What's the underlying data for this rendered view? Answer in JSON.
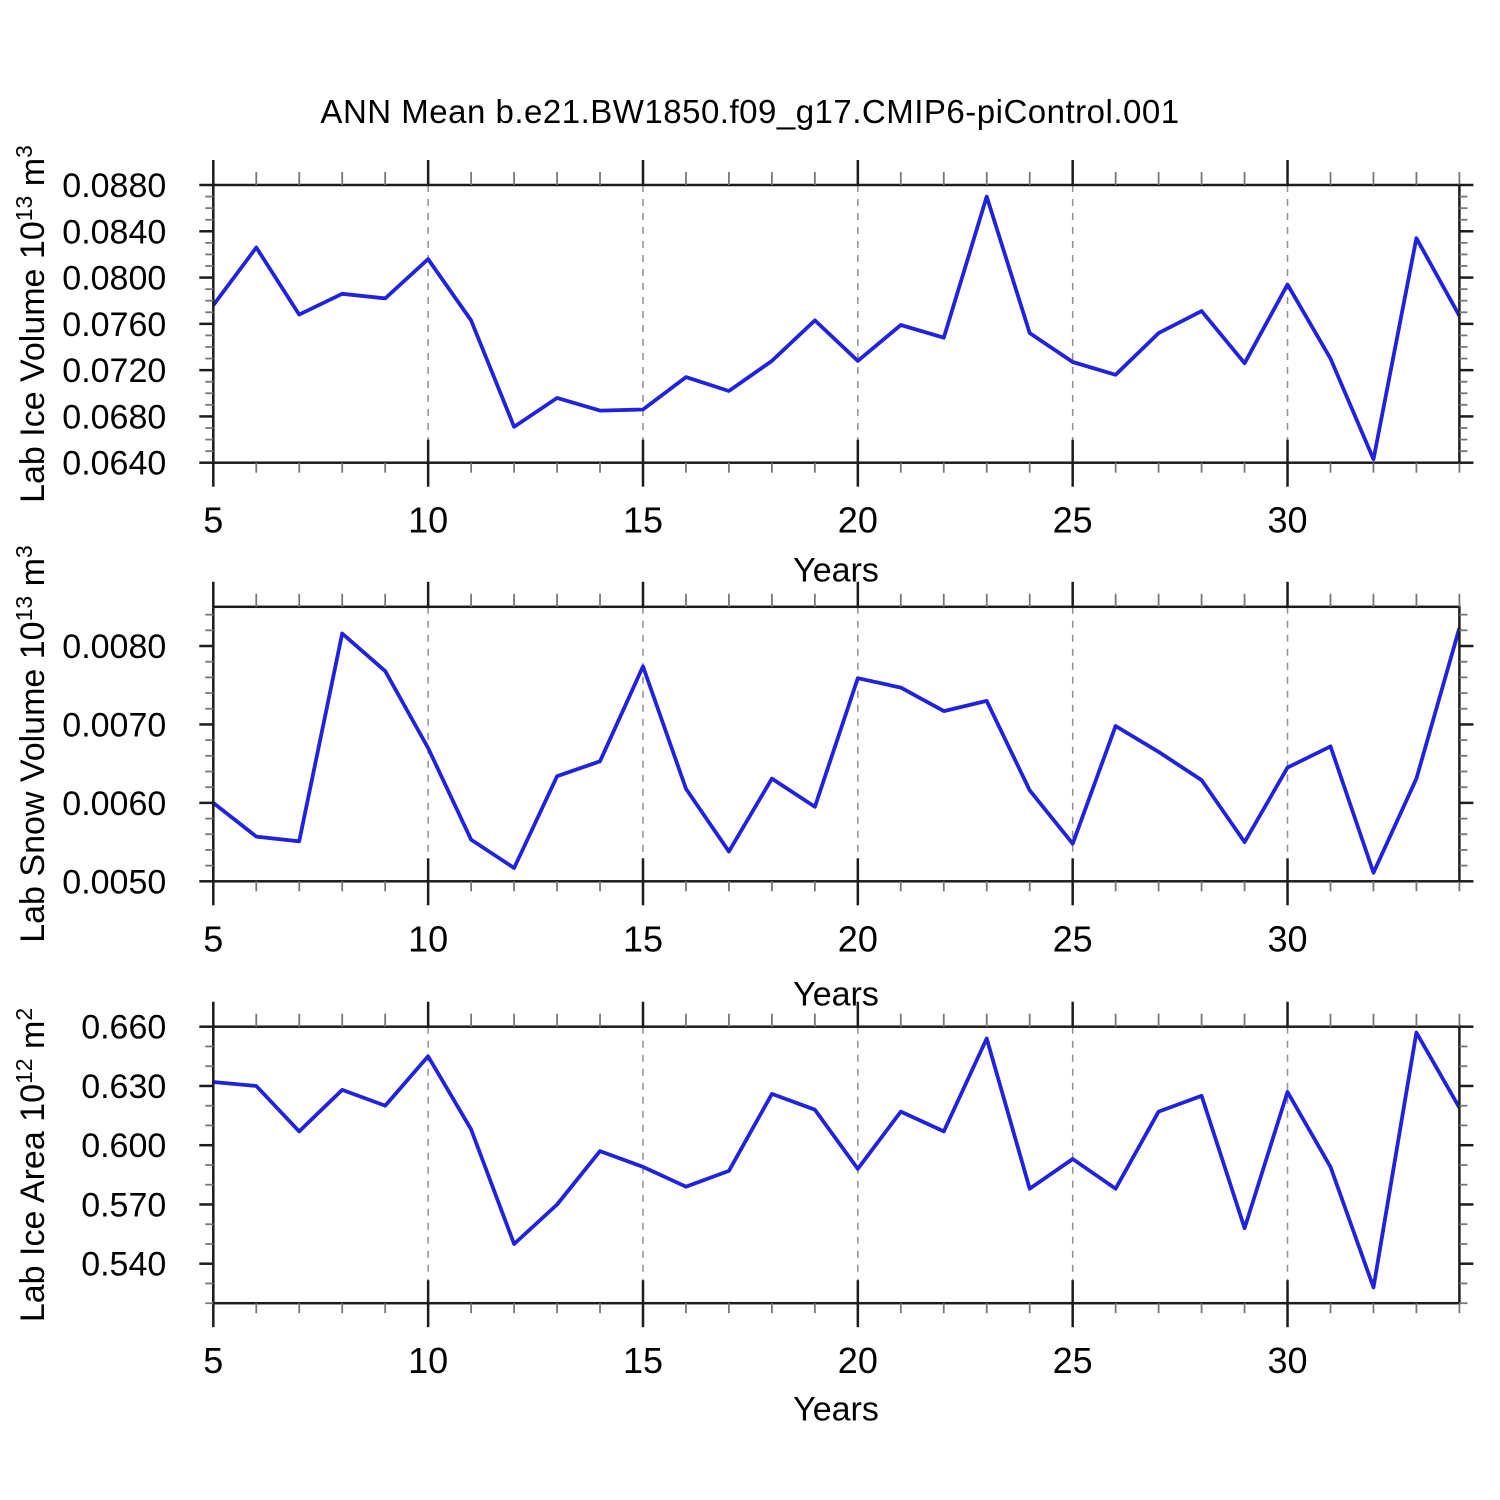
{
  "title": "ANN Mean b.e21.BW1850.f09_g17.CMIP6-piControl.001",
  "colors": {
    "line": "#2222dd",
    "gridline": "#909090",
    "axis": "#1c1c1c",
    "minor_tick": "#777777",
    "text": "#000000",
    "background": "#ffffff"
  },
  "x_axis": {
    "label": "Years",
    "xlim": [
      5,
      34
    ],
    "tick_labels": [
      "5",
      "10",
      "15",
      "20",
      "25",
      "30"
    ],
    "minor_step": 1,
    "grid_years": [
      10,
      15,
      20,
      25,
      30
    ],
    "grid_style": "dashed-vertical"
  },
  "chart_data": [
    {
      "type": "line",
      "name": "lab-ice-volume",
      "ylabel_base": "Lab Ice Volume 10",
      "ylabel_sup1": "13",
      "ylabel_unit": " m",
      "ylabel_sup2": "3",
      "xlabel": "Years",
      "x_start": 5,
      "x": [
        5,
        6,
        7,
        8,
        9,
        10,
        11,
        12,
        13,
        14,
        15,
        16,
        17,
        18,
        19,
        20,
        21,
        22,
        23,
        24,
        25,
        26,
        27,
        28,
        29,
        30,
        31,
        32,
        33,
        34
      ],
      "values": [
        0.0776,
        0.0826,
        0.0768,
        0.0786,
        0.0782,
        0.0816,
        0.0763,
        0.0671,
        0.0696,
        0.0685,
        0.0686,
        0.0714,
        0.0702,
        0.0728,
        0.0763,
        0.0728,
        0.0759,
        0.0748,
        0.087,
        0.0752,
        0.0727,
        0.0716,
        0.0752,
        0.0771,
        0.0726,
        0.0794,
        0.073,
        0.0643,
        0.0834,
        0.0767
      ],
      "ylim": [
        0.064,
        0.088
      ],
      "ytick_labels": [
        "0.0640",
        "0.0680",
        "0.0720",
        "0.0760",
        "0.0800",
        "0.0840",
        "0.0880"
      ],
      "y_minor_step": 0.001,
      "grid": "vertical-dashed-only"
    },
    {
      "type": "line",
      "name": "lab-snow-volume",
      "ylabel_base": "Lab Snow Volume 10",
      "ylabel_sup1": "13",
      "ylabel_unit": " m",
      "ylabel_sup2": "3",
      "xlabel": "Years",
      "x_start": 5,
      "x": [
        5,
        6,
        7,
        8,
        9,
        10,
        11,
        12,
        13,
        14,
        15,
        16,
        17,
        18,
        19,
        20,
        21,
        22,
        23,
        24,
        25,
        26,
        27,
        28,
        29,
        30,
        31,
        32,
        33,
        34
      ],
      "values": [
        0.006,
        0.00557,
        0.00551,
        0.00816,
        0.00768,
        0.0067,
        0.00553,
        0.00517,
        0.00634,
        0.00653,
        0.00774,
        0.00618,
        0.00538,
        0.00631,
        0.00595,
        0.00759,
        0.00747,
        0.00717,
        0.0073,
        0.00616,
        0.00548,
        0.00698,
        0.00665,
        0.00629,
        0.0055,
        0.00645,
        0.00672,
        0.00511,
        0.00631,
        0.00823
      ],
      "ylim": [
        0.005,
        0.0085
      ],
      "ytick_labels": [
        "0.0050",
        "0.0060",
        "0.0070",
        "0.0080"
      ],
      "y_minor_step": 0.0002,
      "grid": "vertical-dashed-only"
    },
    {
      "type": "line",
      "name": "lab-ice-area",
      "ylabel_base": "Lab Ice Area 10",
      "ylabel_sup1": "12",
      "ylabel_unit": " m",
      "ylabel_sup2": "2",
      "xlabel": "Years",
      "x_start": 5,
      "x": [
        5,
        6,
        7,
        8,
        9,
        10,
        11,
        12,
        13,
        14,
        15,
        16,
        17,
        18,
        19,
        20,
        21,
        22,
        23,
        24,
        25,
        26,
        27,
        28,
        29,
        30,
        31,
        32,
        33,
        34
      ],
      "values": [
        0.632,
        0.63,
        0.607,
        0.628,
        0.62,
        0.645,
        0.608,
        0.55,
        0.57,
        0.597,
        0.589,
        0.579,
        0.587,
        0.626,
        0.618,
        0.588,
        0.617,
        0.607,
        0.654,
        0.578,
        0.593,
        0.578,
        0.617,
        0.625,
        0.558,
        0.627,
        0.589,
        0.528,
        0.657,
        0.619
      ],
      "ylim": [
        0.52,
        0.66
      ],
      "ytick_labels": [
        "0.540",
        "0.570",
        "0.600",
        "0.630",
        "0.660"
      ],
      "y_minor_step": 0.01,
      "grid": "vertical-dashed-only"
    }
  ]
}
